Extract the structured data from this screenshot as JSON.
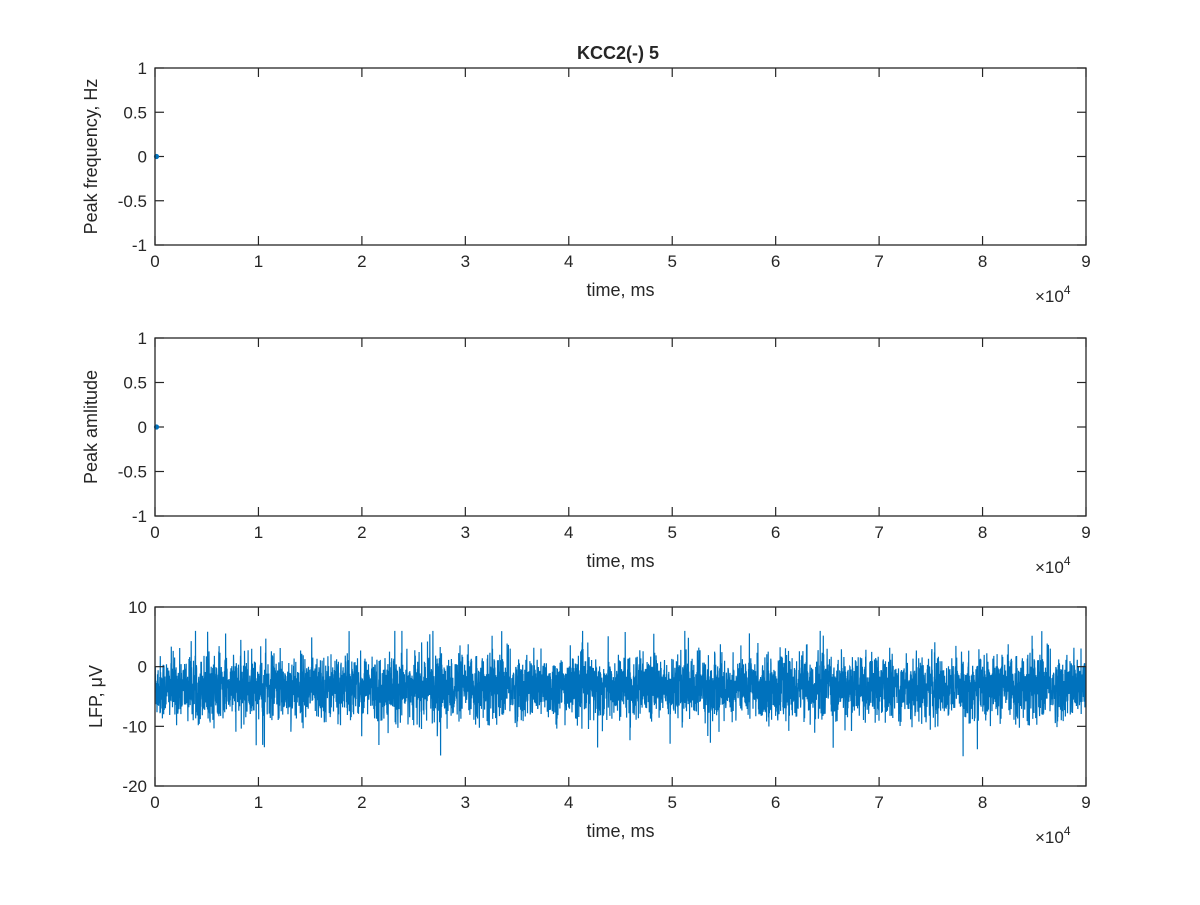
{
  "figure": {
    "title": "KCC2(-) 5",
    "series_color": "#0072BD",
    "axes_color": "#262626"
  },
  "chart_data": [
    {
      "type": "scatter",
      "title": "KCC2(-) 5",
      "xlabel": "time, ms",
      "ylabel": "Peak frequency, Hz",
      "xlim": [
        0,
        90000
      ],
      "ylim": [
        -1,
        1
      ],
      "x_ticks": [
        0,
        10000,
        20000,
        30000,
        40000,
        50000,
        60000,
        70000,
        80000,
        90000
      ],
      "x_tick_labels": [
        "0",
        "1",
        "2",
        "3",
        "4",
        "5",
        "6",
        "7",
        "8",
        "9"
      ],
      "x_exponent_label": "×10",
      "x_exponent": "4",
      "y_ticks": [
        -1,
        -0.5,
        0,
        0.5,
        1
      ],
      "y_tick_labels": [
        "-1",
        "-0.5",
        "0",
        "0.5",
        "1"
      ],
      "grid": false,
      "series": [
        {
          "x": [
            0
          ],
          "y": [
            0
          ]
        }
      ]
    },
    {
      "type": "scatter",
      "xlabel": "time, ms",
      "ylabel": "Peak amlitude",
      "xlim": [
        0,
        90000
      ],
      "ylim": [
        -1,
        1
      ],
      "x_ticks": [
        0,
        10000,
        20000,
        30000,
        40000,
        50000,
        60000,
        70000,
        80000,
        90000
      ],
      "x_tick_labels": [
        "0",
        "1",
        "2",
        "3",
        "4",
        "5",
        "6",
        "7",
        "8",
        "9"
      ],
      "x_exponent_label": "×10",
      "x_exponent": "4",
      "y_ticks": [
        -1,
        -0.5,
        0,
        0.5,
        1
      ],
      "y_tick_labels": [
        "-1",
        "-0.5",
        "0",
        "0.5",
        "1"
      ],
      "grid": false,
      "series": [
        {
          "x": [
            0
          ],
          "y": [
            0
          ]
        }
      ]
    },
    {
      "type": "line",
      "xlabel": "time, ms",
      "ylabel": "LFP, μV",
      "xlim": [
        0,
        90000
      ],
      "ylim": [
        -20,
        10
      ],
      "x_ticks": [
        0,
        10000,
        20000,
        30000,
        40000,
        50000,
        60000,
        70000,
        80000,
        90000
      ],
      "x_tick_labels": [
        "0",
        "1",
        "2",
        "3",
        "4",
        "5",
        "6",
        "7",
        "8",
        "9"
      ],
      "x_exponent_label": "×10",
      "x_exponent": "4",
      "y_ticks": [
        -20,
        -10,
        0,
        10
      ],
      "y_tick_labels": [
        "-20",
        "-10",
        "0",
        "10"
      ],
      "grid": false,
      "signal": {
        "description": "dense noisy LFP trace",
        "mean": -3.5,
        "std": 2.6,
        "typical_max": 4,
        "typical_min": -11,
        "extreme_max": 6,
        "extreme_min": -15,
        "x_start": 0,
        "x_end": 90000
      }
    }
  ]
}
